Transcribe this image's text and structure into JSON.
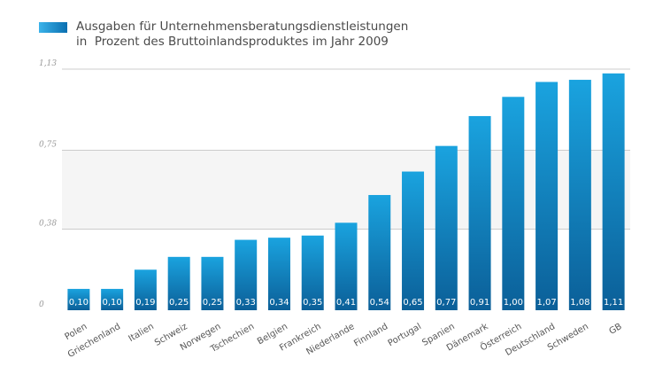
{
  "legend": {
    "line1": "Ausgaben für Unternehmensberatungsdienstleistungen",
    "line2": "in  Prozent des Bruttoinlandsproduktes im Jahr 2009"
  },
  "chart_data": {
    "type": "bar",
    "categories": [
      "Polen",
      "Griechenland",
      "Italien",
      "Schweiz",
      "Norwegen",
      "Tschechien",
      "Belgien",
      "Frankreich",
      "Niederlande",
      "Finnland",
      "Portugal",
      "Spanien",
      "Dänemark",
      "Österreich",
      "Deutschland",
      "Schweden",
      "GB"
    ],
    "values": [
      0.1,
      0.1,
      0.19,
      0.25,
      0.25,
      0.33,
      0.34,
      0.35,
      0.41,
      0.54,
      0.65,
      0.77,
      0.91,
      1.0,
      1.07,
      1.08,
      1.11
    ],
    "value_labels": [
      "0,10",
      "0,10",
      "0,19",
      "0,25",
      "0,25",
      "0,33",
      "0,34",
      "0,35",
      "0,41",
      "0,54",
      "0,65",
      "0,77",
      "0,91",
      "1,00",
      "1,07",
      "1,08",
      "1,11"
    ],
    "yticks": [
      0,
      0.38,
      0.75,
      1.13
    ],
    "ytick_labels": [
      "0",
      "0,38",
      "0,75",
      "1,13"
    ],
    "ylim": [
      0,
      1.13
    ],
    "grid": true,
    "legend_position": "top-left",
    "colors": {
      "bar_top": "#1aa3df",
      "bar_bottom": "#0b5f98",
      "band": "#f5f5f5",
      "gridline": "#cccccc"
    }
  }
}
